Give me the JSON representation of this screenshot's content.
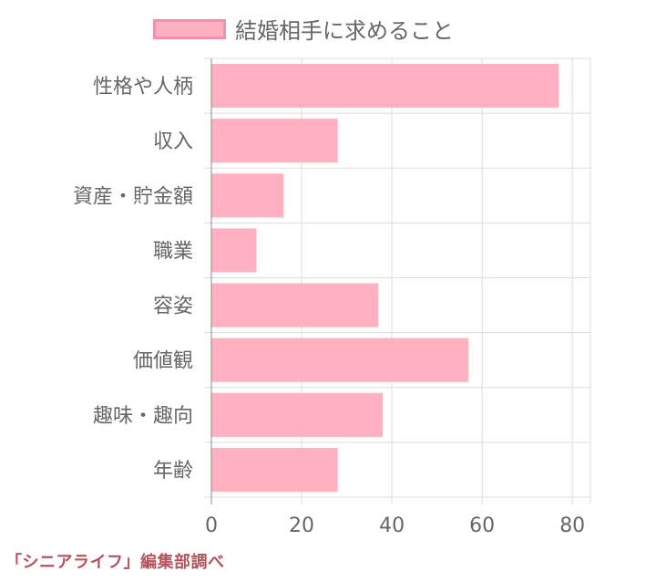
{
  "chart_data": {
    "type": "bar",
    "orientation": "horizontal",
    "categories": [
      "性格や人柄",
      "収入",
      "資産・貯金額",
      "職業",
      "容姿",
      "価値観",
      "趣味・趣向",
      "年齢"
    ],
    "series": [
      {
        "name": "結婚相手に求めること",
        "values": [
          77,
          28,
          16,
          10,
          37,
          57,
          38,
          28
        ]
      }
    ],
    "xlim": [
      0,
      84
    ],
    "x_ticks": [
      0,
      20,
      40,
      60,
      80
    ],
    "grid": true,
    "legend_position": "top",
    "colors": {
      "bar_fill": "#ffb1c1",
      "legend_border": "#f48fab",
      "grid": "#dddddd",
      "axis_text": "#666666"
    }
  },
  "credit": "「シニアライフ」編集部調べ"
}
